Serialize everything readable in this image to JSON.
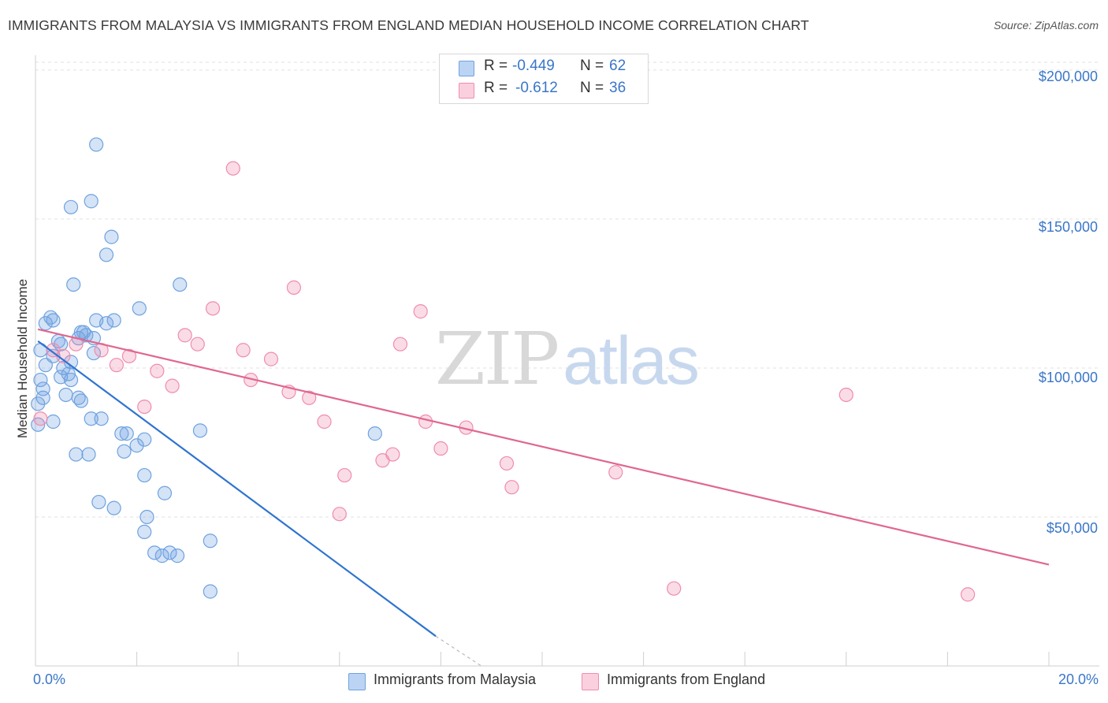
{
  "header": {
    "title": "IMMIGRANTS FROM MALAYSIA VS IMMIGRANTS FROM ENGLAND MEDIAN HOUSEHOLD INCOME CORRELATION CHART",
    "source": "Source: ZipAtlas.com"
  },
  "watermark": {
    "zip": "ZIP",
    "atlas": "atlas"
  },
  "stats_legend": {
    "rows": [
      {
        "r_label": "R =",
        "r_value": "-0.449",
        "n_label": "N =",
        "n_value": "62",
        "color": "#6fa2e0"
      },
      {
        "r_label": "R =",
        "r_value": "-0.612",
        "n_label": "N =",
        "n_value": "36",
        "color": "#f08cae"
      }
    ]
  },
  "chart_data": {
    "type": "scatter",
    "title": "IMMIGRANTS FROM MALAYSIA VS IMMIGRANTS FROM ENGLAND MEDIAN HOUSEHOLD INCOME CORRELATION CHART",
    "xlabel": "",
    "ylabel": "Median Household Income",
    "xlim": [
      0,
      20
    ],
    "ylim": [
      0,
      205000
    ],
    "x_tick_labels": {
      "min": "0.0%",
      "max": "20.0%"
    },
    "y_ticks": [
      {
        "value": 50000,
        "label": "$50,000"
      },
      {
        "value": 100000,
        "label": "$100,000"
      },
      {
        "value": 150000,
        "label": "$150,000"
      },
      {
        "value": 200000,
        "label": "$200,000"
      }
    ],
    "grid": true,
    "legend_position": "bottom-center",
    "series": [
      {
        "name": "Immigrants from Malaysia",
        "color": "#6fa2e0",
        "line_color": "#2f74d0",
        "trend": {
          "x": [
            0.05,
            7.9
          ],
          "y": [
            109000,
            10000
          ],
          "dashed_to": [
            8.8,
            0
          ]
        },
        "points": [
          [
            1.2,
            175000
          ],
          [
            1.1,
            156000
          ],
          [
            0.7,
            154000
          ],
          [
            1.5,
            144000
          ],
          [
            1.4,
            138000
          ],
          [
            0.75,
            128000
          ],
          [
            2.85,
            128000
          ],
          [
            2.05,
            120000
          ],
          [
            0.3,
            117000
          ],
          [
            0.35,
            116000
          ],
          [
            0.2,
            115000
          ],
          [
            1.2,
            116000
          ],
          [
            1.4,
            115000
          ],
          [
            1.55,
            116000
          ],
          [
            0.9,
            112000
          ],
          [
            0.95,
            112000
          ],
          [
            1.0,
            111000
          ],
          [
            0.45,
            109000
          ],
          [
            0.5,
            108000
          ],
          [
            0.1,
            106000
          ],
          [
            1.15,
            105000
          ],
          [
            0.35,
            104000
          ],
          [
            0.7,
            102000
          ],
          [
            0.2,
            101000
          ],
          [
            0.55,
            100000
          ],
          [
            0.5,
            97000
          ],
          [
            0.7,
            96000
          ],
          [
            0.1,
            96000
          ],
          [
            0.15,
            90000
          ],
          [
            0.6,
            91000
          ],
          [
            0.85,
            90000
          ],
          [
            0.9,
            89000
          ],
          [
            0.05,
            88000
          ],
          [
            1.1,
            83000
          ],
          [
            1.3,
            83000
          ],
          [
            0.35,
            82000
          ],
          [
            0.05,
            81000
          ],
          [
            1.7,
            78000
          ],
          [
            1.8,
            78000
          ],
          [
            3.25,
            79000
          ],
          [
            2.15,
            76000
          ],
          [
            6.7,
            78000
          ],
          [
            2.0,
            74000
          ],
          [
            1.75,
            72000
          ],
          [
            0.8,
            71000
          ],
          [
            1.05,
            71000
          ],
          [
            2.15,
            64000
          ],
          [
            2.55,
            58000
          ],
          [
            1.25,
            55000
          ],
          [
            1.55,
            53000
          ],
          [
            2.2,
            50000
          ],
          [
            2.15,
            45000
          ],
          [
            3.45,
            42000
          ],
          [
            2.35,
            38000
          ],
          [
            2.5,
            37000
          ],
          [
            2.65,
            38000
          ],
          [
            2.8,
            37000
          ],
          [
            3.45,
            25000
          ],
          [
            0.15,
            93000
          ],
          [
            0.85,
            110000
          ],
          [
            1.15,
            110000
          ],
          [
            0.65,
            98000
          ]
        ]
      },
      {
        "name": "Immigrants from England",
        "color": "#f08cae",
        "line_color": "#e0678f",
        "trend": {
          "x": [
            0.05,
            20.0
          ],
          "y": [
            113000,
            34000
          ]
        },
        "points": [
          [
            3.9,
            167000
          ],
          [
            5.1,
            127000
          ],
          [
            3.5,
            120000
          ],
          [
            7.6,
            119000
          ],
          [
            2.95,
            111000
          ],
          [
            3.2,
            108000
          ],
          [
            7.2,
            108000
          ],
          [
            0.8,
            108000
          ],
          [
            1.3,
            106000
          ],
          [
            4.1,
            106000
          ],
          [
            1.85,
            104000
          ],
          [
            4.65,
            103000
          ],
          [
            1.6,
            101000
          ],
          [
            2.4,
            99000
          ],
          [
            4.25,
            96000
          ],
          [
            2.7,
            94000
          ],
          [
            0.35,
            106000
          ],
          [
            5.0,
            92000
          ],
          [
            5.4,
            90000
          ],
          [
            16.0,
            91000
          ],
          [
            2.15,
            87000
          ],
          [
            5.7,
            82000
          ],
          [
            7.7,
            82000
          ],
          [
            8.5,
            80000
          ],
          [
            8.0,
            73000
          ],
          [
            7.05,
            71000
          ],
          [
            6.85,
            69000
          ],
          [
            9.3,
            68000
          ],
          [
            11.45,
            65000
          ],
          [
            6.1,
            64000
          ],
          [
            9.4,
            60000
          ],
          [
            6.0,
            51000
          ],
          [
            12.6,
            26000
          ],
          [
            18.4,
            24000
          ],
          [
            0.1,
            83000
          ],
          [
            0.55,
            104000
          ]
        ]
      }
    ]
  },
  "legend_bottom": [
    {
      "label": "Immigrants from Malaysia",
      "color": "#6fa2e0"
    },
    {
      "label": "Immigrants from England",
      "color": "#f08cae"
    }
  ]
}
